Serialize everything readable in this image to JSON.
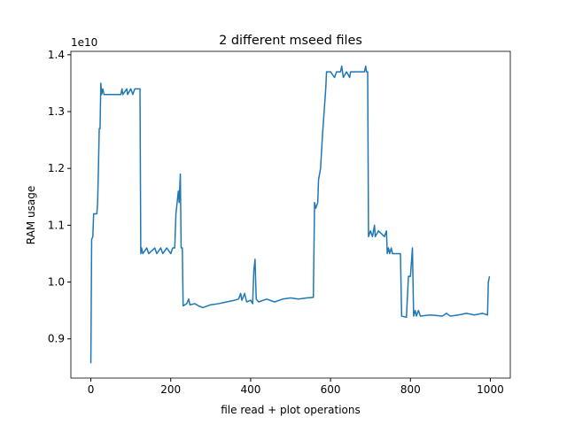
{
  "chart_data": {
    "type": "line",
    "title": "2 different mseed files",
    "xlabel": "file read + plot operations",
    "ylabel": "RAM usage",
    "y_offset": "1e10",
    "color": "#1f77b4",
    "x": [
      0,
      2,
      5,
      7,
      15,
      17,
      19,
      21,
      23,
      25,
      27,
      30,
      33,
      75,
      78,
      80,
      90,
      92,
      100,
      105,
      110,
      120,
      123,
      125,
      127,
      130,
      140,
      145,
      160,
      165,
      175,
      180,
      190,
      200,
      205,
      210,
      213,
      216,
      219,
      221,
      224,
      226,
      229,
      231,
      240,
      245,
      248,
      260,
      270,
      280,
      300,
      320,
      340,
      360,
      370,
      375,
      378,
      385,
      390,
      400,
      405,
      408,
      411,
      414,
      420,
      440,
      460,
      480,
      500,
      520,
      540,
      557,
      560,
      563,
      568,
      570,
      575,
      580,
      585,
      588,
      590,
      600,
      610,
      615,
      625,
      628,
      632,
      640,
      648,
      650,
      685,
      688,
      690,
      693,
      695,
      700,
      705,
      710,
      712,
      720,
      735,
      740,
      742,
      745,
      748,
      752,
      755,
      775,
      778,
      790,
      795,
      800,
      805,
      808,
      812,
      815,
      820,
      825,
      850,
      880,
      890,
      900,
      920,
      940,
      960,
      980,
      993,
      995,
      998
    ],
    "values": [
      0.857,
      1.075,
      1.08,
      1.12,
      1.12,
      1.14,
      1.2,
      1.27,
      1.27,
      1.35,
      1.33,
      1.34,
      1.33,
      1.33,
      1.34,
      1.33,
      1.34,
      1.33,
      1.34,
      1.33,
      1.34,
      1.34,
      1.34,
      1.05,
      1.06,
      1.05,
      1.06,
      1.05,
      1.06,
      1.05,
      1.06,
      1.05,
      1.06,
      1.05,
      1.06,
      1.06,
      1.12,
      1.14,
      1.16,
      1.14,
      1.19,
      1.06,
      1.06,
      0.958,
      0.962,
      0.97,
      0.96,
      0.962,
      0.958,
      0.955,
      0.96,
      0.962,
      0.965,
      0.968,
      0.97,
      0.98,
      0.968,
      0.98,
      0.965,
      0.968,
      0.962,
      1.02,
      1.04,
      0.97,
      0.965,
      0.97,
      0.965,
      0.97,
      0.972,
      0.97,
      0.972,
      0.973,
      1.14,
      1.13,
      1.14,
      1.18,
      1.2,
      1.26,
      1.31,
      1.34,
      1.37,
      1.37,
      1.36,
      1.37,
      1.37,
      1.38,
      1.36,
      1.37,
      1.36,
      1.37,
      1.37,
      1.38,
      1.37,
      1.37,
      1.08,
      1.09,
      1.08,
      1.1,
      1.08,
      1.09,
      1.08,
      1.09,
      1.05,
      1.06,
      1.05,
      1.06,
      1.05,
      1.05,
      0.94,
      0.938,
      1.01,
      1.01,
      1.06,
      0.94,
      0.95,
      0.94,
      0.95,
      0.94,
      0.942,
      0.94,
      0.945,
      0.94,
      0.942,
      0.945,
      0.942,
      0.945,
      0.942,
      1.0,
      1.01
    ],
    "xlim": [
      -50,
      1050
    ],
    "ylim": [
      0.831,
      1.406
    ],
    "xticks": [
      0,
      200,
      400,
      600,
      800,
      1000
    ],
    "yticks": [
      0.9,
      {
        "value": 1,
        "label": "1.0"
      },
      1.1,
      1.2,
      1.3,
      1.4
    ]
  }
}
